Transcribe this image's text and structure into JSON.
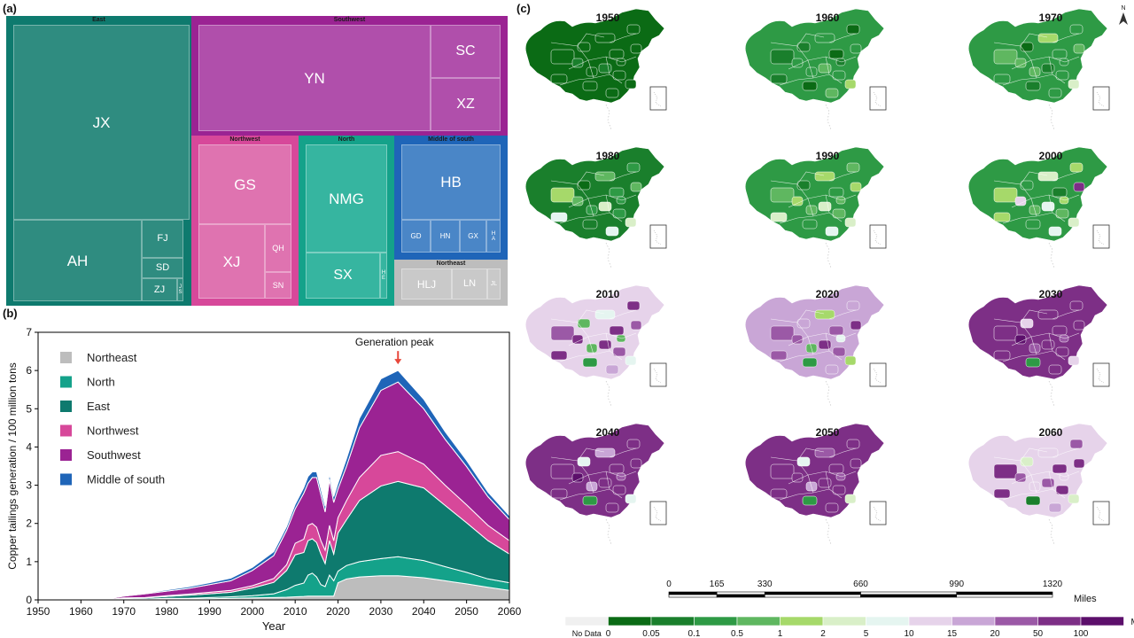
{
  "panels": {
    "a": "(a)",
    "b": "(b)",
    "c": "(c)"
  },
  "chart_data": [
    {
      "type": "treemap",
      "panel": "(a)",
      "groups": [
        {
          "name": "East",
          "color": "#0e7a6e",
          "cell_color": "#2f8c80",
          "children": [
            "JX",
            "AH",
            "FJ",
            "SD",
            "ZJ",
            "JS"
          ]
        },
        {
          "name": "Southwest",
          "color": "#9b2393",
          "cell_color": "#b04fab",
          "children": [
            "YN",
            "SC",
            "XZ"
          ]
        },
        {
          "name": "Northwest",
          "color": "#d7489a",
          "cell_color": "#df73b0",
          "children": [
            "GS",
            "XJ",
            "QH",
            "SN"
          ]
        },
        {
          "name": "North",
          "color": "#14a28a",
          "cell_color": "#36b5a0",
          "children": [
            "NMG",
            "SX",
            "HE"
          ]
        },
        {
          "name": "Middle of south",
          "color": "#1f65b8",
          "cell_color": "#4a86c7",
          "children": [
            "HB",
            "GD",
            "HN",
            "GX",
            "HA"
          ]
        },
        {
          "name": "Northeast",
          "color": "#bdbdbd",
          "cell_color": "#c9c9c9",
          "children": [
            "HLJ",
            "LN",
            "JL"
          ]
        }
      ],
      "cell_labels": {
        "JS": "J\nS",
        "HE": "H\nE",
        "HA": "H\nA"
      }
    },
    {
      "type": "area",
      "stacked": true,
      "panel": "(b)",
      "xlabel": "Year",
      "ylabel": "Copper tailings generation / 100 million tons",
      "xlim": [
        1950,
        2060
      ],
      "ylim": [
        0,
        7
      ],
      "xticks": [
        1950,
        1960,
        1970,
        1980,
        1990,
        2000,
        2010,
        2020,
        2030,
        2040,
        2050,
        2060
      ],
      "yticks": [
        0,
        1,
        2,
        3,
        4,
        5,
        6,
        7
      ],
      "annotation": {
        "text": "Generation peak",
        "x": 2034,
        "y": 6.0
      },
      "x": [
        1950,
        1965,
        1970,
        1975,
        1980,
        1985,
        1990,
        1995,
        2000,
        2005,
        2008,
        2010,
        2012,
        2013,
        2014,
        2015,
        2016,
        2017,
        2018,
        2019,
        2020,
        2022,
        2025,
        2030,
        2034,
        2040,
        2045,
        2050,
        2055,
        2060
      ],
      "series": [
        {
          "name": "Northeast",
          "color": "#bdbdbd",
          "values": [
            0,
            0,
            0.01,
            0.01,
            0.02,
            0.02,
            0.03,
            0.04,
            0.05,
            0.06,
            0.07,
            0.08,
            0.09,
            0.1,
            0.1,
            0.1,
            0.1,
            0.1,
            0.1,
            0.1,
            0.45,
            0.55,
            0.6,
            0.63,
            0.63,
            0.58,
            0.5,
            0.42,
            0.33,
            0.25
          ]
        },
        {
          "name": "North",
          "color": "#14a28a",
          "values": [
            0,
            0,
            0.01,
            0.01,
            0.02,
            0.02,
            0.03,
            0.04,
            0.06,
            0.1,
            0.2,
            0.3,
            0.35,
            0.55,
            0.6,
            0.5,
            0.3,
            0.25,
            0.55,
            0.4,
            0.3,
            0.35,
            0.4,
            0.45,
            0.5,
            0.45,
            0.37,
            0.3,
            0.22,
            0.2
          ]
        },
        {
          "name": "East",
          "color": "#0e7a6e",
          "values": [
            0,
            0,
            0.02,
            0.03,
            0.05,
            0.08,
            0.1,
            0.12,
            0.2,
            0.3,
            0.5,
            0.8,
            0.8,
            0.9,
            0.9,
            0.9,
            0.8,
            0.6,
            0.9,
            0.7,
            1.0,
            1.2,
            1.6,
            1.9,
            1.97,
            1.9,
            1.6,
            1.3,
            1.0,
            0.75
          ]
        },
        {
          "name": "Northwest",
          "color": "#d7489a",
          "values": [
            0,
            0,
            0.01,
            0.01,
            0.02,
            0.03,
            0.04,
            0.05,
            0.06,
            0.1,
            0.15,
            0.3,
            0.35,
            0.4,
            0.4,
            0.4,
            0.35,
            0.35,
            0.4,
            0.35,
            0.4,
            0.5,
            0.6,
            0.8,
            0.78,
            0.62,
            0.53,
            0.47,
            0.4,
            0.35
          ]
        },
        {
          "name": "Southwest",
          "color": "#9b2393",
          "values": [
            0,
            0,
            0.05,
            0.1,
            0.12,
            0.15,
            0.2,
            0.25,
            0.4,
            0.6,
            0.9,
            0.9,
            1.2,
            1.1,
            1.2,
            1.3,
            1.2,
            1.0,
            1.2,
            1.0,
            0.75,
            0.9,
            1.3,
            1.7,
            1.82,
            1.45,
            1.2,
            1.0,
            0.75,
            0.55
          ]
        },
        {
          "name": "Middle of south",
          "color": "#1f65b8",
          "values": [
            0,
            0,
            0.02,
            0.02,
            0.03,
            0.04,
            0.05,
            0.07,
            0.08,
            0.1,
            0.1,
            0.12,
            0.15,
            0.18,
            0.15,
            0.15,
            0.15,
            0.15,
            0.15,
            0.15,
            0.15,
            0.2,
            0.25,
            0.3,
            0.3,
            0.25,
            0.2,
            0.16,
            0.12,
            0.1
          ]
        }
      ]
    },
    {
      "type": "choropleth",
      "panel": "(c)",
      "years": [
        "1950",
        "1960",
        "1970",
        "1980",
        "1990",
        "2000",
        "2010",
        "2020",
        "2030",
        "2040",
        "2050",
        "2060"
      ],
      "scale_bar": {
        "ticks": [
          "0",
          "165",
          "330",
          "660",
          "990",
          "1320"
        ],
        "unit": "Miles"
      },
      "legend": {
        "no_data_label": "No Data",
        "breaks": [
          "0",
          "0.05",
          "0.1",
          "0.5",
          "1",
          "2",
          "5",
          "10",
          "15",
          "20",
          "50",
          "100"
        ],
        "unit": "Mt",
        "colors": [
          "#f0f0f0",
          "#0b6b15",
          "#1a7f2c",
          "#2e9a45",
          "#5fb760",
          "#a6d96a",
          "#d9efc8",
          "#e5f5f0",
          "#e6d3ea",
          "#c9a6d6",
          "#9b59a6",
          "#7d2f86",
          "#5c0f6b"
        ]
      },
      "compass": "N"
    }
  ]
}
